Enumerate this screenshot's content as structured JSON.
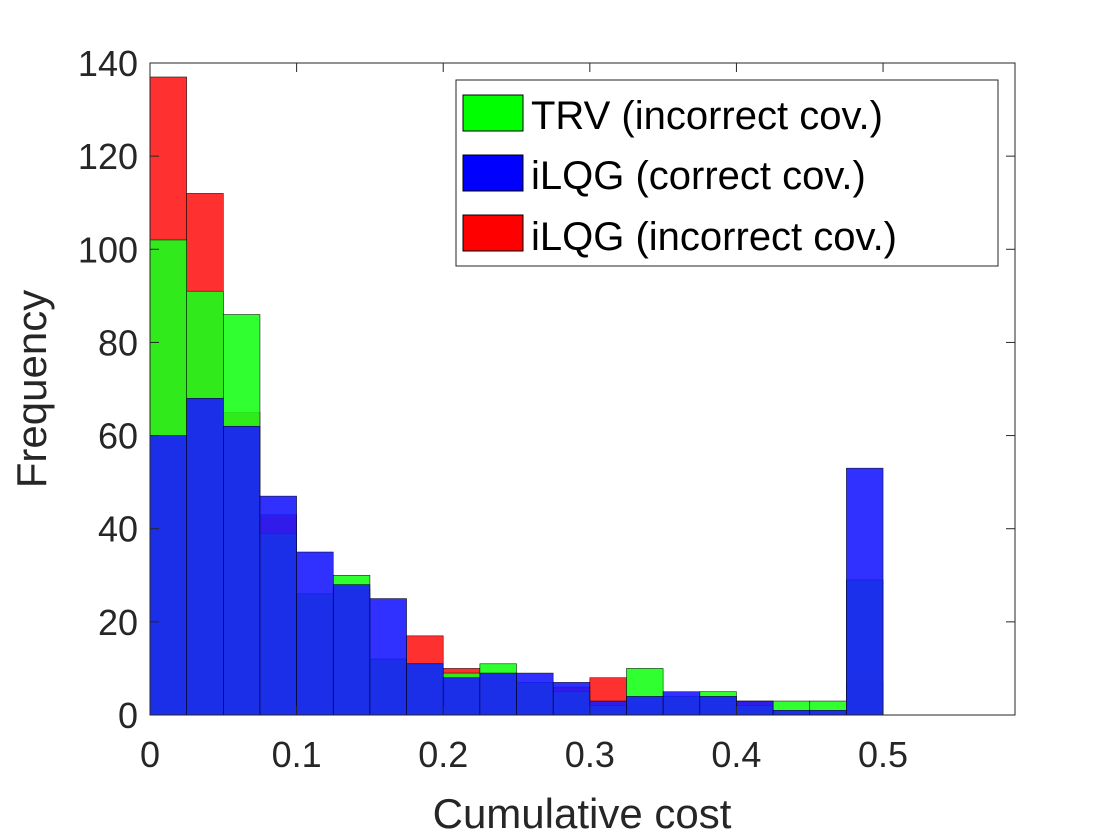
{
  "chart_data": {
    "type": "bar",
    "subtype": "overlaid-histogram",
    "title": "",
    "xlabel": "Cumulative cost",
    "ylabel": "Frequency",
    "xlim": [
      0,
      0.59
    ],
    "ylim": [
      0,
      140
    ],
    "bin_width": 0.025,
    "x_ticks": [
      0,
      0.1,
      0.2,
      0.3,
      0.4,
      0.5
    ],
    "x_tick_labels": [
      "0",
      "0.1",
      "0.2",
      "0.3",
      "0.4",
      "0.5"
    ],
    "y_ticks": [
      0,
      20,
      40,
      60,
      80,
      100,
      120,
      140
    ],
    "y_tick_labels": [
      "0",
      "20",
      "40",
      "60",
      "80",
      "100",
      "120",
      "140"
    ],
    "bin_edges": [
      0,
      0.025,
      0.05,
      0.075,
      0.1,
      0.125,
      0.15,
      0.175,
      0.2,
      0.225,
      0.25,
      0.275,
      0.3,
      0.325,
      0.35,
      0.375,
      0.4,
      0.425,
      0.45,
      0.475,
      0.5,
      0.59
    ],
    "legend_position": "top-right",
    "series": [
      {
        "name": "iLQG (incorrect cov.)",
        "color": "#ff1a1a",
        "values": [
          137,
          112,
          65,
          43,
          26,
          27,
          12,
          17,
          10,
          9,
          7,
          6,
          8,
          2,
          4,
          4,
          3,
          1,
          1,
          7
        ]
      },
      {
        "name": "TRV (incorrect cov.)",
        "color": "#1aff1a",
        "values": [
          102,
          91,
          86,
          39,
          26,
          30,
          12,
          11,
          9,
          11,
          7,
          5,
          2,
          10,
          4,
          5,
          2,
          3,
          3,
          29
        ]
      },
      {
        "name": "iLQG (correct cov.)",
        "color": "#1a1aff",
        "values": [
          60,
          68,
          62,
          47,
          35,
          28,
          25,
          11,
          8,
          9,
          9,
          7,
          3,
          4,
          5,
          4,
          3,
          1,
          1,
          53
        ]
      }
    ],
    "legend_entries": [
      "TRV (incorrect cov.)",
      "iLQG (correct cov.)",
      "iLQG (incorrect cov.)"
    ],
    "legend_colors": [
      "#00ff00",
      "#0000ff",
      "#ff0000"
    ]
  }
}
